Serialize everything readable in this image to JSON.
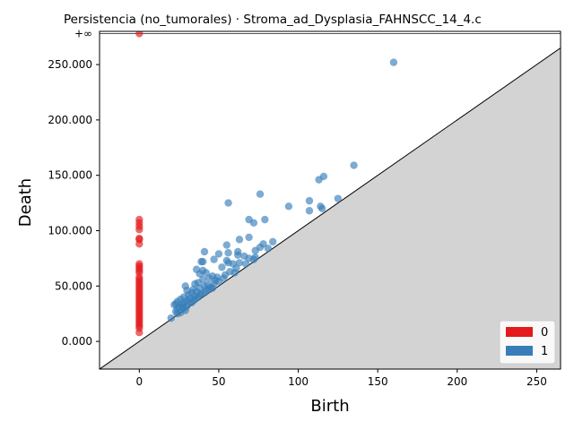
{
  "chart_data": {
    "type": "scatter",
    "title": "Persistencia (no_tumorales) · Stroma_ad_Dysplasia_FAHNSCC_14_4.c",
    "xlabel": "Birth",
    "ylabel": "Death",
    "xlim": [
      -25,
      265
    ],
    "ylim": [
      -25000,
      280000
    ],
    "x_ticks": [
      0,
      50,
      100,
      150,
      200,
      250
    ],
    "x_tick_labels": [
      "0",
      "50",
      "100",
      "150",
      "200",
      "250"
    ],
    "y_ticks": [
      0,
      50000,
      100000,
      150000,
      200000,
      250000
    ],
    "y_tick_labels": [
      "0.000",
      "50.000",
      "100.000",
      "150.000",
      "200.000",
      "250.000"
    ],
    "infinity_value": 278000,
    "infinity_label": "+∞",
    "diagonal": true,
    "legend_position": "lower-right",
    "colors": {
      "0": "#e41a1c",
      "1": "#377eb8",
      "below_diagonal": "#d3d3d3"
    },
    "series": [
      {
        "name": "0",
        "color": "#e41a1c",
        "points": [
          [
            0,
            278000
          ],
          [
            0,
            110000
          ],
          [
            0,
            107000
          ],
          [
            0,
            104000
          ],
          [
            0,
            101000
          ],
          [
            0,
            93000
          ],
          [
            0,
            92000
          ],
          [
            0,
            88000
          ],
          [
            0,
            70000
          ],
          [
            0,
            68000
          ],
          [
            0,
            66000
          ],
          [
            0,
            64000
          ],
          [
            0,
            62000
          ],
          [
            0,
            58000
          ],
          [
            0,
            56000
          ],
          [
            0,
            54000
          ],
          [
            0,
            52000
          ],
          [
            0,
            50000
          ],
          [
            0,
            48000
          ],
          [
            0,
            46000
          ],
          [
            0,
            44000
          ],
          [
            0,
            42000
          ],
          [
            0,
            40000
          ],
          [
            0,
            38000
          ],
          [
            0,
            36000
          ],
          [
            0,
            34000
          ],
          [
            0,
            32000
          ],
          [
            0,
            30000
          ],
          [
            0,
            28000
          ],
          [
            0,
            26000
          ],
          [
            0,
            24000
          ],
          [
            0,
            22000
          ],
          [
            0,
            20000
          ],
          [
            0,
            18000
          ],
          [
            0,
            16000
          ],
          [
            0,
            14000
          ],
          [
            0,
            12000
          ],
          [
            0,
            8000
          ]
        ]
      },
      {
        "name": "1",
        "color": "#377eb8",
        "points": [
          [
            160,
            252000
          ],
          [
            135,
            159000
          ],
          [
            116,
            149000
          ],
          [
            113,
            146000
          ],
          [
            76,
            133000
          ],
          [
            107,
            127000
          ],
          [
            125,
            129000
          ],
          [
            56,
            125000
          ],
          [
            94,
            122000
          ],
          [
            114,
            122000
          ],
          [
            115,
            120000
          ],
          [
            107,
            118000
          ],
          [
            79,
            110000
          ],
          [
            69,
            110000
          ],
          [
            72,
            107000
          ],
          [
            69,
            94000
          ],
          [
            63,
            92000
          ],
          [
            84,
            90000
          ],
          [
            78,
            88000
          ],
          [
            55,
            87000
          ],
          [
            76,
            85000
          ],
          [
            81,
            84000
          ],
          [
            73,
            82000
          ],
          [
            41,
            81000
          ],
          [
            62,
            81000
          ],
          [
            56,
            80000
          ],
          [
            50,
            79000
          ],
          [
            62,
            78000
          ],
          [
            66,
            77000
          ],
          [
            73,
            76000
          ],
          [
            69,
            75000
          ],
          [
            47,
            74000
          ],
          [
            55,
            73000
          ],
          [
            39,
            72000
          ],
          [
            40,
            72000
          ],
          [
            63,
            71000
          ],
          [
            56,
            71000
          ],
          [
            59,
            70000
          ],
          [
            72,
            74000
          ],
          [
            67,
            70000
          ],
          [
            52,
            67000
          ],
          [
            61,
            66000
          ],
          [
            36,
            65000
          ],
          [
            40,
            64000
          ],
          [
            57,
            63000
          ],
          [
            60,
            62000
          ],
          [
            42,
            62000
          ],
          [
            38,
            61000
          ],
          [
            54,
            60000
          ],
          [
            46,
            59000
          ],
          [
            49,
            58000
          ],
          [
            44,
            57000
          ],
          [
            40,
            56000
          ],
          [
            48,
            55000
          ],
          [
            37,
            53000
          ],
          [
            35,
            52000
          ],
          [
            29,
            50000
          ],
          [
            43,
            51000
          ],
          [
            41,
            50000
          ],
          [
            45,
            49000
          ],
          [
            38,
            48000
          ],
          [
            34,
            47000
          ],
          [
            30,
            46000
          ],
          [
            42,
            46000
          ],
          [
            36,
            45000
          ],
          [
            33,
            44000
          ],
          [
            39,
            43000
          ],
          [
            31,
            42000
          ],
          [
            35,
            41000
          ],
          [
            28,
            40000
          ],
          [
            37,
            40000
          ],
          [
            32,
            39000
          ],
          [
            26,
            38000
          ],
          [
            30,
            37000
          ],
          [
            34,
            37000
          ],
          [
            24,
            36000
          ],
          [
            28,
            35000
          ],
          [
            33,
            35000
          ],
          [
            23,
            34000
          ],
          [
            27,
            33000
          ],
          [
            22,
            33000
          ],
          [
            30,
            32000
          ],
          [
            25,
            31000
          ],
          [
            28,
            30000
          ],
          [
            24,
            29000
          ],
          [
            29,
            28000
          ],
          [
            23,
            27000
          ],
          [
            26,
            26000
          ],
          [
            24,
            25000
          ],
          [
            20,
            21000
          ],
          [
            44,
            47000
          ],
          [
            47,
            52000
          ],
          [
            50,
            54000
          ],
          [
            53,
            57000
          ],
          [
            46,
            48000
          ],
          [
            41,
            44000
          ],
          [
            38,
            42000
          ],
          [
            35,
            38000
          ],
          [
            31,
            35000
          ],
          [
            27,
            31000
          ]
        ]
      }
    ]
  }
}
